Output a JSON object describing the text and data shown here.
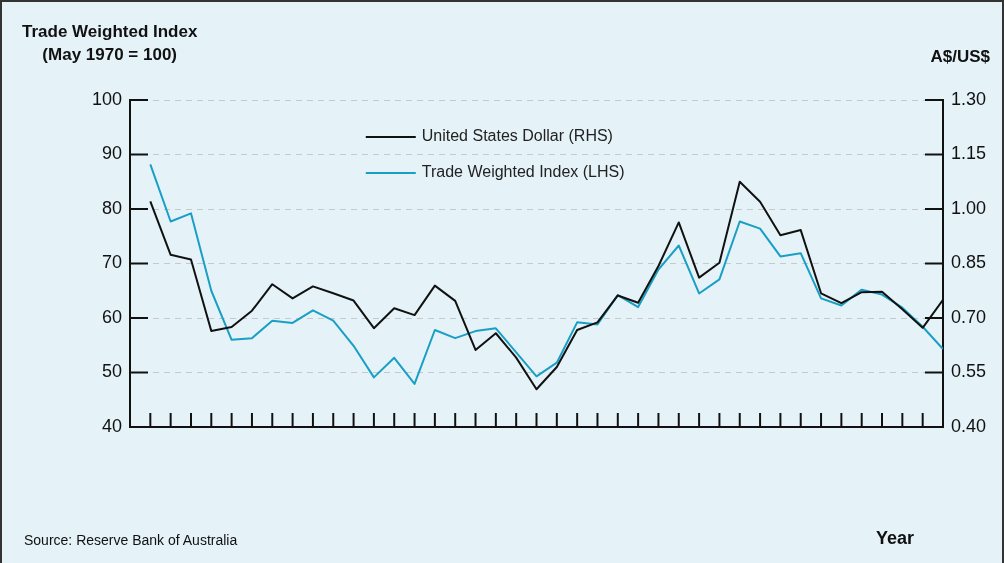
{
  "chart_data": {
    "type": "line",
    "ylabel": "Trade Weighted Index\n(May 1970 = 100)",
    "y2label": "A$/US$",
    "annotations": [
      "Source: Reserve Bank of Australia",
      "Year"
    ],
    "categories": [
      null,
      null,
      null,
      null,
      null,
      null,
      null,
      null,
      null,
      null,
      null,
      null,
      null,
      null,
      null,
      null,
      null,
      null,
      null,
      null,
      null,
      null,
      null,
      null,
      null,
      null,
      null,
      null,
      null,
      null,
      null,
      null,
      null,
      null,
      null,
      null,
      null,
      null,
      null,
      null
    ],
    "series": [
      {
        "name": "United States Dollar (RHS)",
        "color": "#111111",
        "axis": "y2",
        "values": [
          1.021,
          0.874,
          0.861,
          0.664,
          0.675,
          0.72,
          0.793,
          0.754,
          0.787,
          0.768,
          0.748,
          0.672,
          0.727,
          0.708,
          0.789,
          0.747,
          0.612,
          0.658,
          0.591,
          0.504,
          0.565,
          0.667,
          0.688,
          0.762,
          0.742,
          0.843,
          0.963,
          0.811,
          0.852,
          1.075,
          1.02,
          0.928,
          0.942,
          0.768,
          0.741,
          0.771,
          0.772,
          0.724,
          0.673,
          0.75
        ]
      },
      {
        "name": "Trade Weighted Index (LHS)",
        "color": "#1a9fc4",
        "values": [
          88.2,
          77.7,
          79.2,
          65.0,
          56.0,
          56.3,
          59.5,
          59.1,
          61.4,
          59.5,
          54.9,
          49.1,
          52.7,
          47.9,
          57.8,
          56.3,
          57.6,
          58.1,
          53.7,
          49.3,
          51.8,
          59.2,
          58.8,
          64.2,
          62.0,
          68.9,
          73.3,
          64.5,
          67.1,
          77.7,
          76.4,
          71.3,
          71.9,
          63.6,
          62.3,
          65.2,
          64.3,
          61.9,
          58.4,
          54.3
        ]
      }
    ],
    "ylim": [
      40,
      100
    ],
    "yticks": [
      40,
      50,
      60,
      70,
      80,
      90,
      100
    ],
    "y2lim": [
      0.4,
      1.3
    ],
    "y2ticks": [
      {
        "value": 0.4,
        "label": "0.40"
      },
      {
        "value": 0.55,
        "label": "0.55"
      },
      {
        "value": 0.7,
        "label": "0.70"
      },
      {
        "value": 0.85,
        "label": "0.85"
      },
      {
        "value": 1.0,
        "label": "1.00"
      },
      {
        "value": 1.15,
        "label": "1.15"
      },
      {
        "value": 1.3,
        "label": "1.30"
      }
    ],
    "tick_labels": "y",
    "grid": "y",
    "legend": "top",
    "marker": "none",
    "line_style": "solid"
  }
}
